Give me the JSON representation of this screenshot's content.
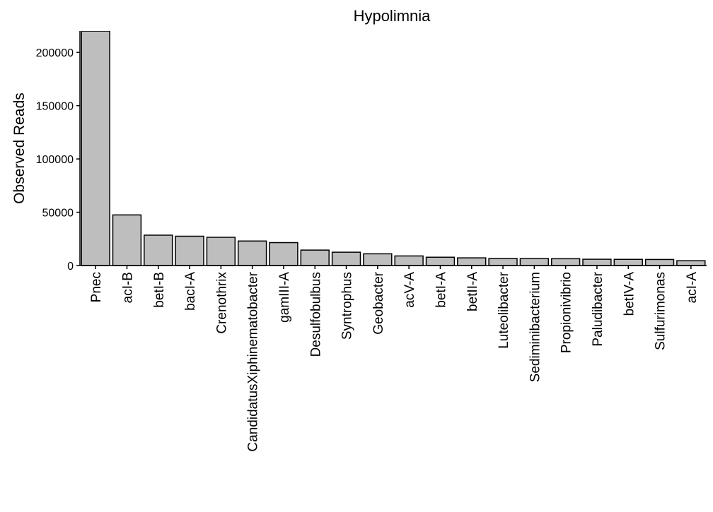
{
  "chart_data": {
    "type": "bar",
    "title": "Hypolimnia",
    "xlabel": "",
    "ylabel": "Observed Reads",
    "ylim": [
      0,
      220000
    ],
    "yticks": [
      0,
      50000,
      100000,
      150000,
      200000
    ],
    "grid": false,
    "legend": "none",
    "bar_fill": "#bebebe",
    "bar_stroke": "#000000",
    "categories": [
      "Pnec",
      "acI-B",
      "betI-B",
      "bacI-A",
      "Crenothrix",
      "CandidatusXiphinematobacter",
      "gamIII-A",
      "Desulfobulbus",
      "Syntrophus",
      "Geobacter",
      "acV-A",
      "betI-A",
      "betII-A",
      "Luteolibacter",
      "Sediminibacterium",
      "Propionivibrio",
      "Paludibacter",
      "betIV-A",
      "Sulfurimonas",
      "acI-A"
    ],
    "values": [
      230000,
      47500,
      28500,
      27500,
      26500,
      23000,
      21500,
      14500,
      12500,
      11000,
      9000,
      7800,
      7200,
      6600,
      6500,
      6400,
      5900,
      5800,
      5700,
      4500
    ]
  }
}
